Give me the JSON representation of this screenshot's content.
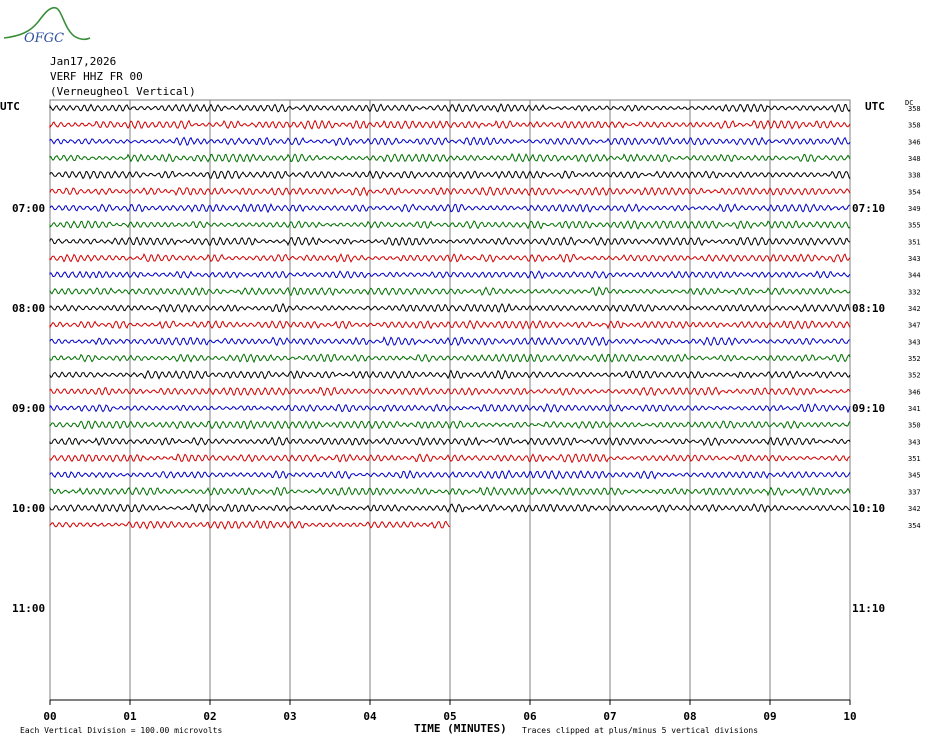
{
  "logo": {
    "text": "OFGC"
  },
  "header": {
    "date": "Jan17,2026",
    "station": "VERF HHZ FR 00",
    "description": "(Verneugheol Vertical)"
  },
  "colors": {
    "black": "#000000",
    "red": "#d40000",
    "blue": "#0000c8",
    "green": "#007000",
    "grid": "#808080"
  },
  "chart_data": {
    "type": "line",
    "title": "",
    "left_axis_label": "UTC",
    "right_axis_label": "UTC",
    "dc_label": "DC",
    "xlabel": "TIME (MINUTES)",
    "x_ticks": [
      "00",
      "01",
      "02",
      "03",
      "04",
      "05",
      "06",
      "07",
      "08",
      "09",
      "10"
    ],
    "xlim": [
      0,
      10
    ],
    "left_time_labels": [
      {
        "label": "07:00",
        "row": 6
      },
      {
        "label": "08:00",
        "row": 12
      },
      {
        "label": "09:00",
        "row": 18
      },
      {
        "label": "10:00",
        "row": 24
      },
      {
        "label": "11:00",
        "row": 30
      }
    ],
    "right_time_labels": [
      {
        "label": "07:10",
        "row": 6
      },
      {
        "label": "08:10",
        "row": 12
      },
      {
        "label": "09:10",
        "row": 18
      },
      {
        "label": "10:10",
        "row": 24
      },
      {
        "label": "11:10",
        "row": 30
      }
    ],
    "dc_offsets": [
      358,
      358,
      346,
      348,
      338,
      354,
      349,
      355,
      351,
      343,
      344,
      332,
      342,
      347,
      343,
      352,
      352,
      346,
      341,
      350,
      343,
      351,
      345,
      337,
      342,
      354
    ],
    "trace_colors": [
      "black",
      "red",
      "blue",
      "green"
    ],
    "trace_end_minutes": [
      10,
      10,
      10,
      10,
      10,
      10,
      10,
      10,
      10,
      10,
      10,
      10,
      10,
      10,
      10,
      10,
      10,
      10,
      10,
      10,
      10,
      10,
      10,
      10,
      10,
      5
    ],
    "footer_left": "Each Vertical Division =  100.00 microvolts",
    "footer_right": "Traces clipped at plus/minus 5 vertical divisions"
  }
}
